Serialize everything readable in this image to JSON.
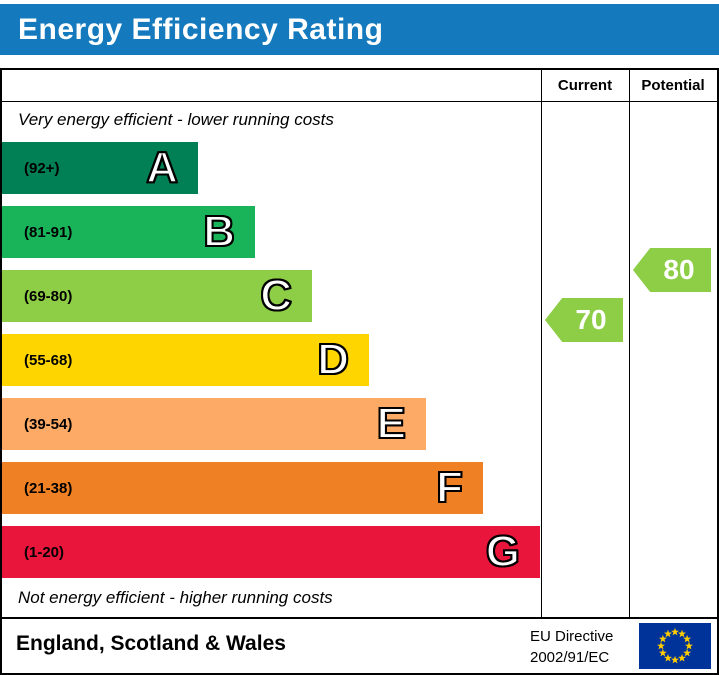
{
  "title": "Energy Efficiency Rating",
  "header": {
    "current": "Current",
    "potential": "Potential"
  },
  "notes": {
    "top": "Very energy efficient - lower running costs",
    "bottom": "Not energy efficient - higher running costs"
  },
  "ratings": {
    "current": {
      "label": "70",
      "color": "#8dce46"
    },
    "potential": {
      "label": "80",
      "color": "#8dce46"
    }
  },
  "footer": {
    "region": "England, Scotland & Wales",
    "directive_line1": "EU Directive",
    "directive_line2": "2002/91/EC"
  },
  "colors": {
    "title_bar": "#1479bd",
    "border": "#000000",
    "eu_flag_bg": "#003399",
    "eu_flag_star": "#ffcc00"
  },
  "chart_data": {
    "type": "bar",
    "title": "Energy Efficiency Rating",
    "categories": [
      "A",
      "B",
      "C",
      "D",
      "E",
      "F",
      "G"
    ],
    "bands": [
      {
        "letter": "A",
        "range_label": "(92+)",
        "min": 92,
        "max": 100,
        "color": "#008054"
      },
      {
        "letter": "B",
        "range_label": "(81-91)",
        "min": 81,
        "max": 91,
        "color": "#19b459"
      },
      {
        "letter": "C",
        "range_label": "(69-80)",
        "min": 69,
        "max": 80,
        "color": "#8dce46"
      },
      {
        "letter": "D",
        "range_label": "(55-68)",
        "min": 55,
        "max": 68,
        "color": "#ffd500"
      },
      {
        "letter": "E",
        "range_label": "(39-54)",
        "min": 39,
        "max": 54,
        "color": "#fcaa65"
      },
      {
        "letter": "F",
        "range_label": "(21-38)",
        "min": 21,
        "max": 38,
        "color": "#ef8023"
      },
      {
        "letter": "G",
        "range_label": "(1-20)",
        "min": 1,
        "max": 20,
        "color": "#e9153b"
      }
    ],
    "current": 70,
    "potential": 80,
    "legend": [
      "Current",
      "Potential"
    ]
  }
}
